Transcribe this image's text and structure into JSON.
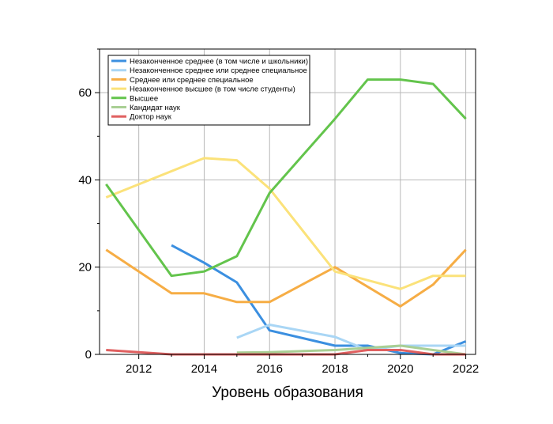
{
  "chart_data": {
    "type": "line",
    "title": "",
    "xlabel": "Уровень образования",
    "ylabel": "",
    "xlim": [
      2010.8,
      2022.3
    ],
    "ylim": [
      0,
      70
    ],
    "x_ticks": [
      2012,
      2014,
      2016,
      2018,
      2020,
      2022
    ],
    "y_ticks": [
      0,
      20,
      40,
      60
    ],
    "grid": true,
    "legend_position": "top-left",
    "series": [
      {
        "name": "Незаконченное среднее (в том числе и школьники)",
        "color": "#3b8fe0",
        "points": [
          [
            2013,
            25
          ],
          [
            2014,
            21
          ],
          [
            2015,
            16.5
          ],
          [
            2016,
            5.5
          ],
          [
            2018,
            2
          ],
          [
            2019,
            2
          ],
          [
            2020,
            0.3
          ],
          [
            2021,
            0
          ],
          [
            2022,
            3
          ]
        ]
      },
      {
        "name": "Незаконченное среднее или среднее специальное",
        "color": "#a9d6f5",
        "points": [
          [
            2015,
            3.8
          ],
          [
            2016,
            6.8
          ],
          [
            2018,
            4
          ],
          [
            2019,
            1
          ],
          [
            2020,
            2
          ],
          [
            2021,
            2
          ],
          [
            2022,
            2
          ]
        ]
      },
      {
        "name": "Среднее или среднее специальное",
        "color": "#f6ad45",
        "points": [
          [
            2011,
            24
          ],
          [
            2013,
            14
          ],
          [
            2014,
            14
          ],
          [
            2015,
            12
          ],
          [
            2016,
            12
          ],
          [
            2018,
            20
          ],
          [
            2020,
            11
          ],
          [
            2021,
            16
          ],
          [
            2022,
            24
          ]
        ]
      },
      {
        "name": "Незаконченное высшее (в том числе студенты)",
        "color": "#fbe27a",
        "points": [
          [
            2011,
            36
          ],
          [
            2014,
            45
          ],
          [
            2015,
            44.5
          ],
          [
            2016,
            38
          ],
          [
            2018,
            19
          ],
          [
            2020,
            15
          ],
          [
            2021,
            18
          ],
          [
            2022,
            18
          ]
        ]
      },
      {
        "name": "Высшее",
        "color": "#63c44c",
        "points": [
          [
            2011,
            39
          ],
          [
            2013,
            18
          ],
          [
            2014,
            19
          ],
          [
            2015,
            22.5
          ],
          [
            2016,
            37
          ],
          [
            2018,
            54
          ],
          [
            2019,
            63
          ],
          [
            2020,
            63
          ],
          [
            2021,
            62
          ],
          [
            2022,
            54
          ]
        ]
      },
      {
        "name": "Кандидат наук",
        "color": "#a9cf94",
        "points": [
          [
            2015,
            0.4
          ],
          [
            2016,
            0.5
          ],
          [
            2018,
            1
          ],
          [
            2020,
            2
          ],
          [
            2021,
            1
          ],
          [
            2022,
            0
          ]
        ]
      },
      {
        "name": "Доктор наук",
        "color": "#e06060",
        "points": [
          [
            2011,
            1
          ],
          [
            2013,
            0
          ],
          [
            2014,
            0
          ],
          [
            2016,
            0
          ],
          [
            2018,
            0
          ],
          [
            2019,
            1
          ],
          [
            2020,
            1
          ],
          [
            2021,
            0
          ],
          [
            2022,
            0
          ]
        ]
      }
    ]
  }
}
